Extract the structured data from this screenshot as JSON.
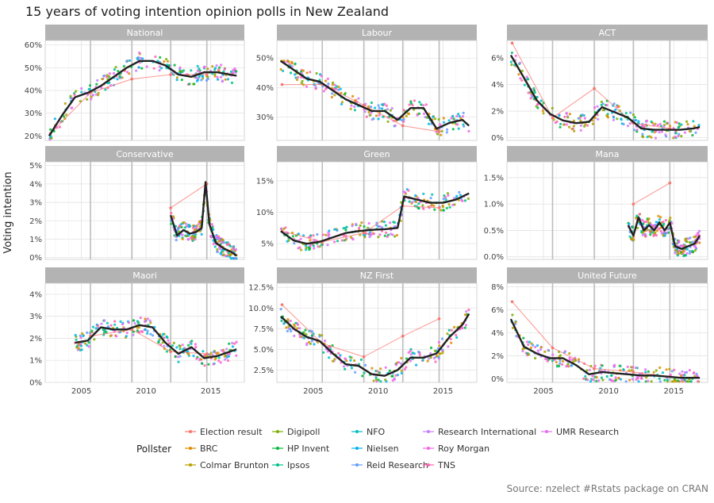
{
  "title": "15 years of voting intention opinion polls in New Zealand",
  "ylabel": "Voting intention",
  "source": "Source: nzelect #Rstats package on CRAN",
  "legend_title": "Pollster",
  "colors": {
    "strip_bg": "#b3b3b3",
    "strip_text": "#ffffff",
    "trend_line": "#222222",
    "grid_major": "#e3e3e3",
    "grid_minor": "#f2f2f2",
    "election_rule": "#bdbdbd"
  },
  "pollsters": [
    {
      "name": "Election result",
      "color": "#F8766D"
    },
    {
      "name": "BRC",
      "color": "#DE8C00"
    },
    {
      "name": "Colmar Brunton",
      "color": "#B79F00"
    },
    {
      "name": "Digipoll",
      "color": "#7CAE00"
    },
    {
      "name": "HP Invent",
      "color": "#00BA38"
    },
    {
      "name": "Ipsos",
      "color": "#00C08B"
    },
    {
      "name": "NFO",
      "color": "#00BFC4"
    },
    {
      "name": "Nielsen",
      "color": "#00B4F0"
    },
    {
      "name": "Reid Research",
      "color": "#619CFF"
    },
    {
      "name": "Research International",
      "color": "#C77CFF"
    },
    {
      "name": "Roy Morgan",
      "color": "#F564E3"
    },
    {
      "name": "TNS",
      "color": "#FF64B0"
    },
    {
      "name": "UMR Research",
      "color": "#E76BF3"
    }
  ],
  "election_years": [
    2005.7,
    2008.9,
    2011.9,
    2014.7
  ],
  "chart_data": {
    "type": "line",
    "x_ticks": [
      2005,
      2010,
      2015
    ],
    "xlim": [
      2002.2,
      2017.6
    ],
    "panels": [
      {
        "name": "National",
        "ylim": [
          0.18,
          0.62
        ],
        "yticks": [
          0.2,
          0.3,
          0.4,
          0.5,
          0.6
        ],
        "ytick_labels": [
          "20%",
          "30%",
          "40%",
          "50%",
          "60%"
        ],
        "trend": {
          "x": [
            2002.5,
            2003.5,
            2004.5,
            2005.5,
            2006.5,
            2007.5,
            2008.5,
            2009.5,
            2010.5,
            2011.5,
            2012.5,
            2013.5,
            2014.5,
            2015.5,
            2016.5,
            2017.0
          ],
          "y": [
            0.2,
            0.29,
            0.37,
            0.39,
            0.42,
            0.46,
            0.5,
            0.53,
            0.53,
            0.51,
            0.47,
            0.46,
            0.48,
            0.48,
            0.47,
            0.465
          ]
        },
        "election": {
          "x": [
            2002.6,
            2005.7,
            2008.9,
            2011.9,
            2014.7
          ],
          "y": [
            0.21,
            0.39,
            0.45,
            0.47,
            0.47
          ]
        }
      },
      {
        "name": "Labour",
        "ylim": [
          0.22,
          0.56
        ],
        "yticks": [
          0.3,
          0.4,
          0.5
        ],
        "ytick_labels": [
          "30%",
          "40%",
          "50%"
        ],
        "trend": {
          "x": [
            2002.5,
            2003.5,
            2004.5,
            2005.5,
            2006.5,
            2007.5,
            2008.5,
            2009.5,
            2010.5,
            2011.5,
            2012.5,
            2013.5,
            2014.5,
            2015.5,
            2016.5,
            2017.0
          ],
          "y": [
            0.49,
            0.46,
            0.43,
            0.42,
            0.39,
            0.36,
            0.34,
            0.32,
            0.32,
            0.29,
            0.33,
            0.33,
            0.26,
            0.28,
            0.29,
            0.27
          ]
        },
        "election": {
          "x": [
            2002.6,
            2005.7,
            2008.9,
            2011.9,
            2014.7
          ],
          "y": [
            0.41,
            0.41,
            0.34,
            0.27,
            0.25
          ]
        }
      },
      {
        "name": "ACT",
        "ylim": [
          -0.002,
          0.073
        ],
        "yticks": [
          0,
          0.02,
          0.04,
          0.06
        ],
        "ytick_labels": [
          "0%",
          "2%",
          "4%",
          "6%"
        ],
        "trend": {
          "x": [
            2002.5,
            2003.5,
            2004.5,
            2005.5,
            2006.5,
            2007.5,
            2008.5,
            2009.5,
            2010.5,
            2011.5,
            2012.5,
            2013.5,
            2014.5,
            2015.5,
            2016.5,
            2017.0
          ],
          "y": [
            0.062,
            0.045,
            0.028,
            0.018,
            0.013,
            0.011,
            0.012,
            0.023,
            0.019,
            0.015,
            0.007,
            0.006,
            0.006,
            0.006,
            0.007,
            0.008
          ]
        },
        "election": {
          "x": [
            2002.6,
            2005.7,
            2008.9,
            2011.9,
            2014.7
          ],
          "y": [
            0.071,
            0.015,
            0.037,
            0.011,
            0.007
          ]
        }
      },
      {
        "name": "Conservative",
        "ylim": [
          -0.001,
          0.052
        ],
        "yticks": [
          0,
          0.01,
          0.02,
          0.03,
          0.04,
          0.05
        ],
        "ytick_labels": [
          "0%",
          "1%",
          "2%",
          "3%",
          "4%",
          "5%"
        ],
        "trend": {
          "x": [
            2011.9,
            2012.4,
            2012.9,
            2013.4,
            2013.9,
            2014.3,
            2014.6,
            2014.9,
            2015.4,
            2016.0,
            2016.6,
            2017.0
          ],
          "y": [
            0.023,
            0.012,
            0.015,
            0.013,
            0.014,
            0.016,
            0.041,
            0.018,
            0.008,
            0.005,
            0.003,
            0.001
          ]
        },
        "election": {
          "x": [
            2011.9,
            2014.7
          ],
          "y": [
            0.027,
            0.04
          ]
        }
      },
      {
        "name": "Green",
        "ylim": [
          0.025,
          0.18
        ],
        "yticks": [
          0.05,
          0.1,
          0.15
        ],
        "ytick_labels": [
          "5%",
          "10%",
          "15%"
        ],
        "trend": {
          "x": [
            2002.5,
            2003.5,
            2004.5,
            2005.5,
            2006.5,
            2007.5,
            2008.5,
            2009.5,
            2010.5,
            2011.5,
            2012.0,
            2013.0,
            2014.0,
            2015.0,
            2016.0,
            2017.0
          ],
          "y": [
            0.07,
            0.055,
            0.05,
            0.053,
            0.06,
            0.067,
            0.07,
            0.072,
            0.073,
            0.075,
            0.125,
            0.12,
            0.115,
            0.115,
            0.12,
            0.13
          ]
        },
        "election": {
          "x": [
            2002.6,
            2005.7,
            2008.9,
            2011.9,
            2014.7
          ],
          "y": [
            0.07,
            0.053,
            0.067,
            0.11,
            0.107
          ]
        }
      },
      {
        "name": "Mana",
        "ylim": [
          -0.0005,
          0.018
        ],
        "yticks": [
          0,
          0.005,
          0.01,
          0.015
        ],
        "ytick_labels": [
          "0.0%",
          "0.5%",
          "1.0%",
          "1.5%"
        ],
        "trend": {
          "x": [
            2011.5,
            2011.9,
            2012.3,
            2012.7,
            2013.1,
            2013.5,
            2013.9,
            2014.3,
            2014.7,
            2015.1,
            2015.6,
            2016.1,
            2016.6,
            2017.0
          ],
          "y": [
            0.006,
            0.004,
            0.0075,
            0.005,
            0.006,
            0.005,
            0.0065,
            0.005,
            0.0065,
            0.002,
            0.0015,
            0.002,
            0.0025,
            0.004
          ]
        },
        "election": {
          "x": [
            2011.9,
            2014.7
          ],
          "y": [
            0.01,
            0.014
          ]
        }
      },
      {
        "name": "Maori",
        "ylim": [
          0,
          0.045
        ],
        "yticks": [
          0,
          0.01,
          0.02,
          0.03,
          0.04
        ],
        "ytick_labels": [
          "0%",
          "1%",
          "2%",
          "3%",
          "4%"
        ],
        "trend": {
          "x": [
            2004.5,
            2005.5,
            2006.5,
            2007.5,
            2008.5,
            2009.5,
            2010.5,
            2011.5,
            2012.5,
            2013.5,
            2014.5,
            2015.5,
            2016.5,
            2017.0
          ],
          "y": [
            0.018,
            0.019,
            0.025,
            0.024,
            0.024,
            0.026,
            0.025,
            0.018,
            0.013,
            0.016,
            0.011,
            0.012,
            0.014,
            0.015
          ]
        },
        "election": {
          "x": [
            2005.7,
            2008.9,
            2011.9,
            2014.7
          ],
          "y": [
            0.021,
            0.024,
            0.014,
            0.013
          ]
        }
      },
      {
        "name": "NZ First",
        "ylim": [
          0.01,
          0.13
        ],
        "yticks": [
          0.025,
          0.05,
          0.075,
          0.1,
          0.125
        ],
        "ytick_labels": [
          "2.5%",
          "5.0%",
          "7.5%",
          "10.0%",
          "12.5%"
        ],
        "trend": {
          "x": [
            2002.5,
            2003.5,
            2004.5,
            2005.5,
            2006.5,
            2007.5,
            2008.5,
            2009.5,
            2010.5,
            2011.5,
            2012.5,
            2013.5,
            2014.5,
            2015.5,
            2016.5,
            2017.0
          ],
          "y": [
            0.09,
            0.075,
            0.065,
            0.06,
            0.045,
            0.032,
            0.03,
            0.02,
            0.018,
            0.025,
            0.04,
            0.04,
            0.045,
            0.065,
            0.08,
            0.093
          ]
        },
        "election": {
          "x": [
            2002.6,
            2005.7,
            2008.9,
            2011.9,
            2014.7
          ],
          "y": [
            0.104,
            0.057,
            0.041,
            0.066,
            0.087
          ]
        }
      },
      {
        "name": "United Future",
        "ylim": [
          -0.003,
          0.083
        ],
        "yticks": [
          0,
          0.02,
          0.04,
          0.06,
          0.08
        ],
        "ytick_labels": [
          "0%",
          "2%",
          "4%",
          "6%",
          "8%"
        ],
        "trend": {
          "x": [
            2002.5,
            2003.5,
            2004.5,
            2005.5,
            2006.5,
            2007.5,
            2008.5,
            2009.5,
            2010.5,
            2011.5,
            2012.5,
            2013.5,
            2014.5,
            2015.5,
            2016.5,
            2017.0
          ],
          "y": [
            0.052,
            0.028,
            0.022,
            0.018,
            0.018,
            0.012,
            0.004,
            0.006,
            0.005,
            0.004,
            0.003,
            0.003,
            0.002,
            0.001,
            0.001,
            0.001
          ]
        },
        "election": {
          "x": [
            2002.6,
            2005.7,
            2008.9,
            2011.9,
            2014.7
          ],
          "y": [
            0.067,
            0.027,
            0.009,
            0.006,
            0.002
          ]
        }
      }
    ]
  }
}
